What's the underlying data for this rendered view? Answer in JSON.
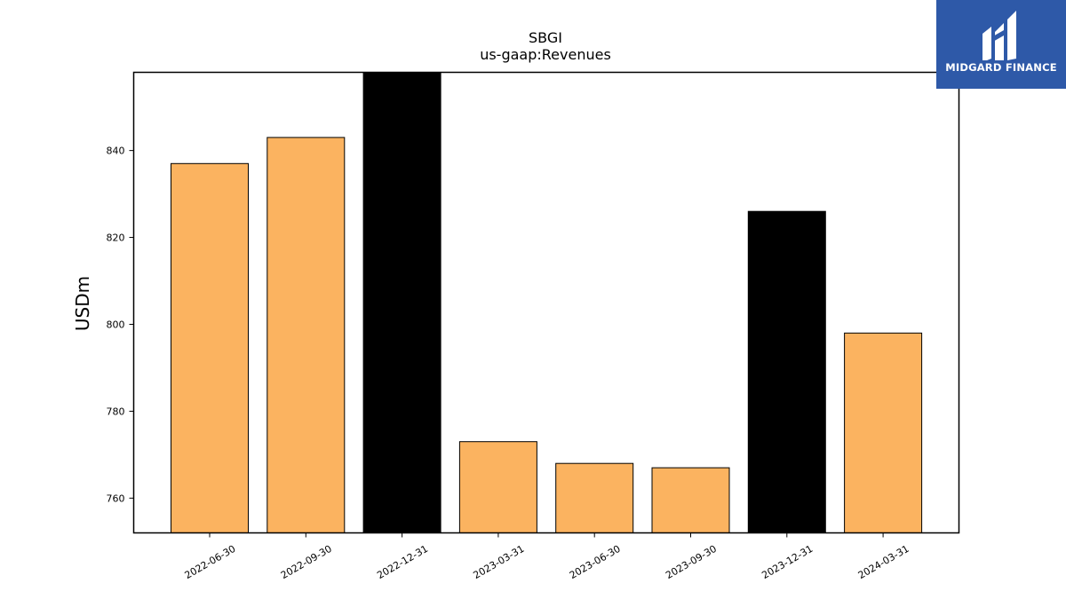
{
  "chart_data": {
    "type": "bar",
    "title": "SBGI",
    "subtitle": "us-gaap:Revenues",
    "xlabel": "",
    "ylabel": "USDm",
    "categories": [
      "2022-06-30",
      "2022-09-30",
      "2022-12-31",
      "2023-03-31",
      "2023-06-30",
      "2023-09-30",
      "2023-12-31",
      "2024-03-31"
    ],
    "values": [
      837,
      843,
      860,
      773,
      768,
      767,
      826,
      798
    ],
    "bar_colors": [
      "#fbb360",
      "#fbb360",
      "#000000",
      "#fbb360",
      "#fbb360",
      "#fbb360",
      "#000000",
      "#fbb360"
    ],
    "ylim": [
      752,
      858
    ],
    "yticks": [
      760,
      780,
      800,
      820,
      840
    ],
    "grid": false,
    "legend": "none"
  },
  "logo": {
    "text": "MIDGARD FINANCE",
    "background": "#2e59a8",
    "icon": "midgard-logo-icon"
  }
}
